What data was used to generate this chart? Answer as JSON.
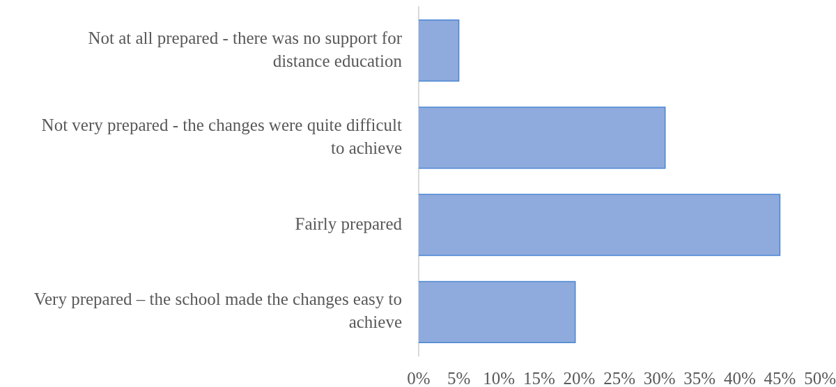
{
  "chart_data": {
    "type": "bar",
    "orientation": "horizontal",
    "categories": [
      "Not at all prepared - there was no support for distance education",
      "Not very prepared - the changes were quite difficult to achieve",
      "Fairly prepared",
      "Very prepared – the school made the changes easy to achieve"
    ],
    "values": [
      5,
      30.7,
      45,
      19.5
    ],
    "color": "#8faadc",
    "xlim": [
      0,
      50
    ],
    "xticks": [
      {
        "value": 0,
        "label": "0%"
      },
      {
        "value": 5,
        "label": "5%"
      },
      {
        "value": 10,
        "label": "10%"
      },
      {
        "value": 15,
        "label": "15%"
      },
      {
        "value": 20,
        "label": "20%"
      },
      {
        "value": 25,
        "label": "25%"
      },
      {
        "value": 30,
        "label": "30%"
      },
      {
        "value": 35,
        "label": "35%"
      },
      {
        "value": 40,
        "label": "40%"
      },
      {
        "value": 45,
        "label": "45%"
      },
      {
        "value": 50,
        "label": "50%"
      }
    ],
    "grid": false,
    "legend": false
  }
}
